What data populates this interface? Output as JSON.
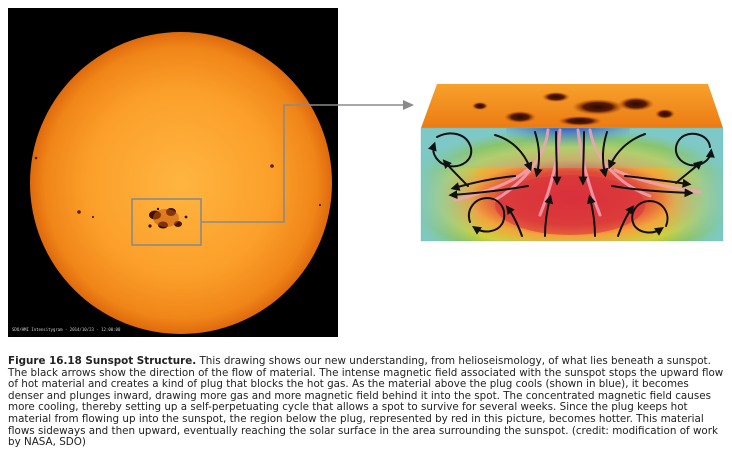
{
  "figure": {
    "solar_image_credit": "SDO/HMI Intensitygram - 2014/10/23 - 12:00:00",
    "colors": {
      "photosphere": "#f58d1c",
      "photosphere_core": "#ffb541",
      "space": "#000000",
      "callout_frame": "#8a8a8a",
      "cool_region": "#1e49b8",
      "hot_region": "#d9303c",
      "mid_region": "#8fc23a",
      "outer_region": "#7ec9c8",
      "flow_arrows": "#111111"
    },
    "icons": [
      "sunspot-group",
      "callout-arrow",
      "flow-arrow"
    ]
  },
  "caption": {
    "label": "Figure 16.18 Sunspot Structure.",
    "text": " This drawing shows our new understanding, from helioseismology, of what lies beneath a sunspot. The black arrows show the direction of the flow of material. The intense magnetic field associated with the sunspot stops the upward flow of hot material and creates a kind of plug that blocks the hot gas. As the material above the plug cools (shown in blue), it becomes denser and plunges inward, drawing more gas and more magnetic field behind it into the spot. The concentrated magnetic field causes more cooling, thereby setting up a self-perpetuating cycle that allows a spot to survive for several weeks. Since the plug keeps hot material from flowing up into the sunspot, the region below the plug, represented by red in this picture, becomes hotter. This material flows sideways and then upward, eventually reaching the solar surface in the area surrounding the sunspot. (credit: modification of work by NASA, SDO)"
  }
}
